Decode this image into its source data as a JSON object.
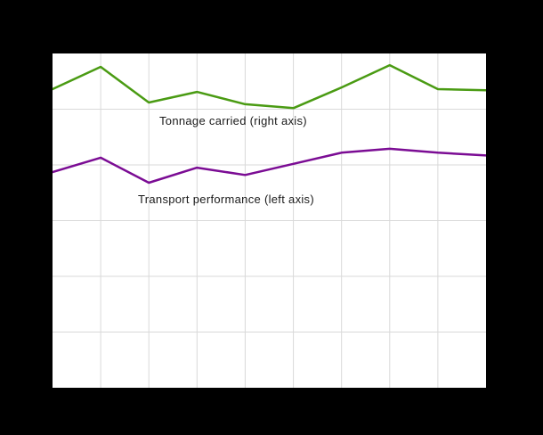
{
  "colors": {
    "page_background": "#000000",
    "plot_background": "#ffffff",
    "gridline": "#d9d9d9",
    "label_text": "#1a1a1a"
  },
  "labels": {
    "tonnage": "Tonnage carried (right axis)",
    "transport": "Transport performance (left axis)"
  },
  "chart_data": {
    "type": "line",
    "title": "",
    "xlabel": "",
    "ylabel": "",
    "x_tick_labels_visible": false,
    "y_tick_labels_visible": false,
    "grid": true,
    "x_divisions": 9,
    "y_divisions": 6,
    "ylim": [
      0,
      6
    ],
    "x": [
      1,
      2,
      3,
      4,
      5,
      6,
      7,
      8,
      9,
      10
    ],
    "series": [
      {
        "name": "Tonnage carried (right axis)",
        "axis": "right",
        "color": "#4a9b13",
        "values": [
          5.36,
          5.76,
          5.12,
          5.31,
          5.09,
          5.02,
          5.39,
          5.79,
          5.36,
          5.34
        ]
      },
      {
        "name": "Transport performance (left axis)",
        "axis": "left",
        "color": "#7b0c94",
        "values": [
          3.87,
          4.13,
          3.68,
          3.95,
          3.82,
          4.02,
          4.22,
          4.29,
          4.22,
          4.17
        ]
      }
    ],
    "annotations": [
      {
        "text": "Tonnage carried (right axis)",
        "anchor_series": "Tonnage carried (right axis)"
      },
      {
        "text": "Transport performance (left axis)",
        "anchor_series": "Transport performance (left axis)"
      }
    ]
  }
}
